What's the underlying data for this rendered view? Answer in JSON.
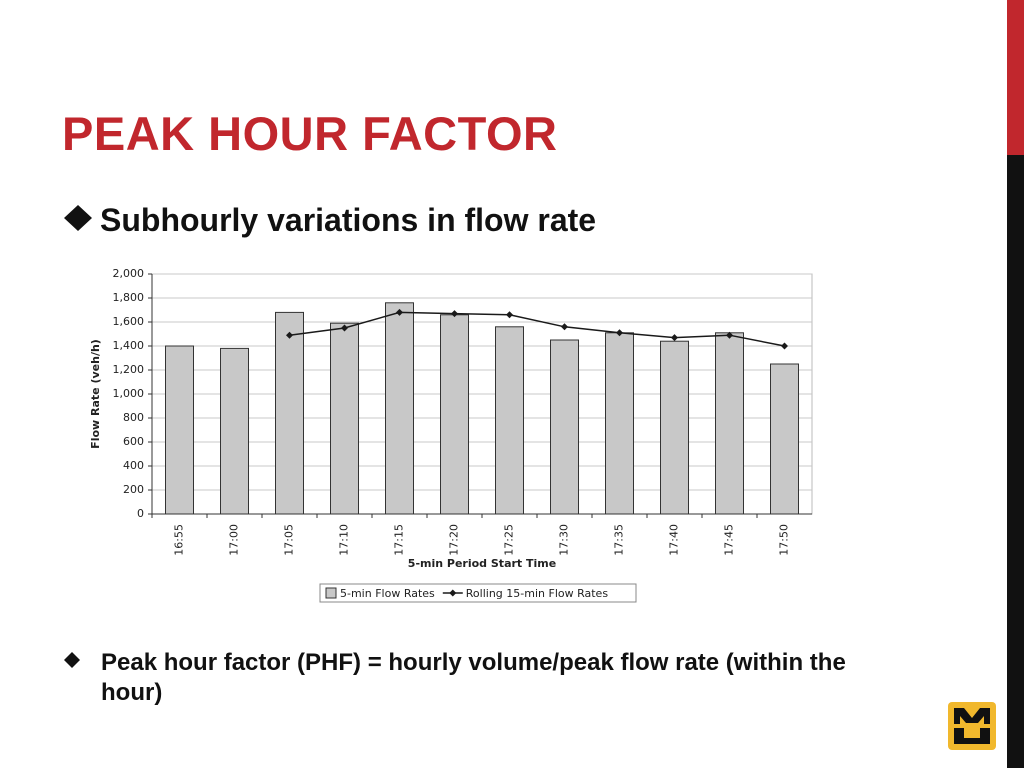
{
  "slide": {
    "title": "PEAK HOUR FACTOR",
    "bullets": [
      "Subhourly variations in flow rate",
      "Peak hour factor (PHF) = hourly volume/peak flow rate (within the hour)"
    ]
  },
  "chart_data": {
    "type": "bar",
    "x_label": "5-min Period Start Time",
    "y_label": "Flow Rate (veh/h)",
    "categories": [
      "16:55",
      "17:00",
      "17:05",
      "17:10",
      "17:15",
      "17:20",
      "17:25",
      "17:30",
      "17:35",
      "17:40",
      "17:45",
      "17:50"
    ],
    "series": [
      {
        "name": "5-min Flow Rates",
        "type": "bar",
        "color": "#c8c8c8",
        "values": [
          1400,
          1380,
          1680,
          1590,
          1760,
          1660,
          1560,
          1450,
          1510,
          1440,
          1510,
          1250
        ]
      },
      {
        "name": "Rolling 15-min Flow Rates",
        "type": "line",
        "color": "#1a1a1a",
        "values": [
          null,
          null,
          1490,
          1550,
          1680,
          1670,
          1660,
          1560,
          1510,
          1470,
          1490,
          1400
        ]
      }
    ],
    "ylim": [
      0,
      2000
    ],
    "yticks": [
      0,
      200,
      400,
      600,
      800,
      {
        "value": 1000,
        "label": "1,000"
      },
      {
        "value": 1200,
        "label": "1,200"
      },
      {
        "value": 1400,
        "label": "1,400"
      },
      {
        "value": 1600,
        "label": "1,600"
      },
      {
        "value": 1800,
        "label": "1,800"
      },
      {
        "value": 2000,
        "label": "2,000"
      }
    ],
    "grid": true,
    "legend": "bottom"
  }
}
